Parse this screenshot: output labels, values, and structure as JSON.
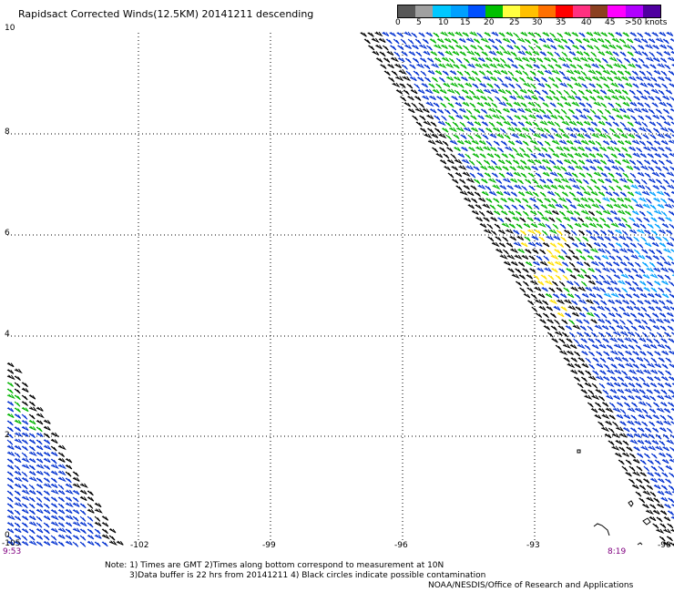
{
  "title": "Rapidsact Corrected Winds(12.5KM) 20141211 descending",
  "legend": {
    "labels": [
      "0",
      "5",
      "10",
      "15",
      "20",
      "25",
      "30",
      "35",
      "40",
      "45",
      ">50 knots"
    ],
    "colors": [
      "#585858",
      "#a0a0a0",
      "#00c8ff",
      "#00a0ff",
      "#0050ff",
      "#00c000",
      "#ffff40",
      "#ffc000",
      "#ff7000",
      "#ff0000",
      "#ff3080",
      "#8b4020",
      "#ff00ff",
      "#b000ff",
      "#5000a0"
    ]
  },
  "axes": {
    "x_ticks": [
      "-105",
      "-102",
      "-99",
      "-96",
      "-93",
      "-90"
    ],
    "y_ticks": [
      "10",
      "8",
      "6",
      "4",
      "2",
      "0"
    ]
  },
  "times": {
    "left": "9:53",
    "right": "8:19"
  },
  "notes": {
    "line1": "Note: 1) Times are GMT 2)Times along bottom correspond to measurement at 10N",
    "line2": "3)Data buffer is 22 hrs from 20141211 4) Black circles indicate possible contamination"
  },
  "credit": "NOAA/NESDIS/Office of Research and Applications"
}
